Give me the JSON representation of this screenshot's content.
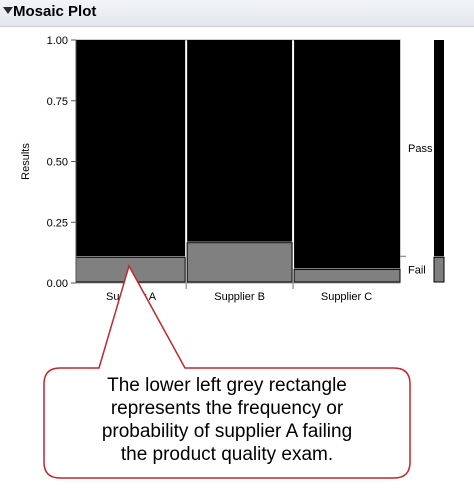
{
  "header": {
    "title": "Mosaic Plot"
  },
  "chart_data": {
    "type": "mosaic",
    "ylabel": "Results",
    "ylim": [
      0,
      1
    ],
    "yticks": [
      "0.00",
      "0.25",
      "0.50",
      "0.75",
      "1.00"
    ],
    "categories": [
      "Supplier A",
      "Supplier B",
      "Supplier C"
    ],
    "column_widths": [
      0.34,
      0.33,
      0.33
    ],
    "levels": [
      "Fail",
      "Pass"
    ],
    "fail_fractions": [
      0.11,
      0.17,
      0.06
    ],
    "overall_fail_fraction": 0.11,
    "colors": {
      "Pass": "#000000",
      "Fail": "#808080"
    }
  },
  "callout": {
    "lines": [
      "The lower left grey rectangle",
      "represents the frequency or",
      "probability of supplier A failing",
      "the product quality exam."
    ],
    "border_color": "#c0282d"
  }
}
